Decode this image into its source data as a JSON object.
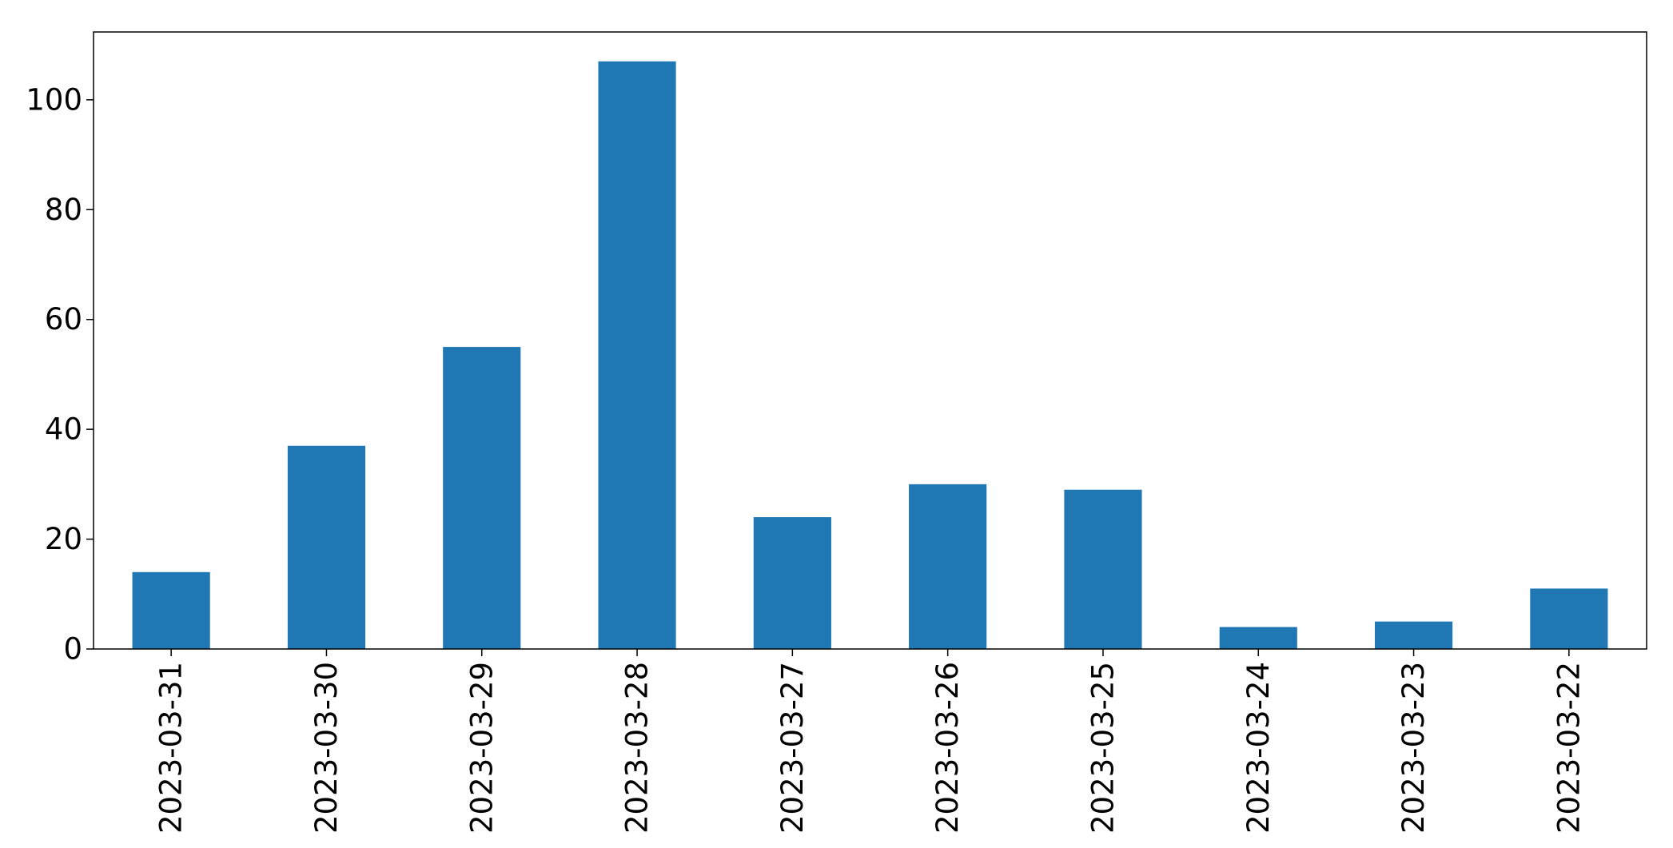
{
  "chart_data": {
    "type": "bar",
    "categories": [
      "2023-03-31",
      "2023-03-30",
      "2023-03-29",
      "2023-03-28",
      "2023-03-27",
      "2023-03-26",
      "2023-03-25",
      "2023-03-24",
      "2023-03-23",
      "2023-03-22"
    ],
    "values": [
      14,
      37,
      55,
      107,
      24,
      30,
      29,
      4,
      5,
      11
    ],
    "title": "",
    "xlabel": "",
    "ylabel": "",
    "ylim": [
      0,
      112.35
    ],
    "yticks": [
      0,
      20,
      40,
      60,
      80,
      100
    ],
    "grid": false,
    "legend": "none",
    "bar_color": "#1f77b4"
  }
}
